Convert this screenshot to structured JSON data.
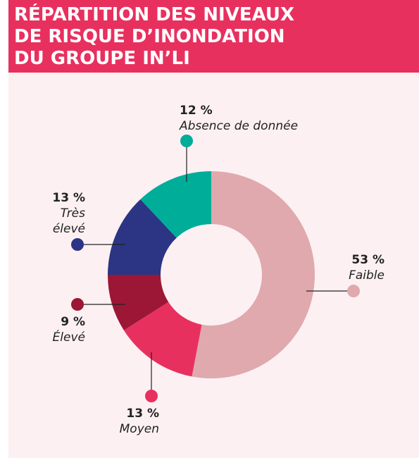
{
  "chart_data": {
    "type": "donut",
    "title": "Répartition des niveaux de risque d’inondation du groupe In’li",
    "categories": [
      "Faible",
      "Moyen",
      "Élevé",
      "Très élevé",
      "Absence de donnée"
    ],
    "values": [
      53,
      13,
      9,
      13,
      12
    ],
    "value_labels": [
      "53 %",
      "13 %",
      "9 %",
      "13 %",
      "12 %"
    ],
    "colors": [
      "#e0a9ad",
      "#e8305f",
      "#9b1735",
      "#2b3583",
      "#00ad99"
    ]
  }
}
